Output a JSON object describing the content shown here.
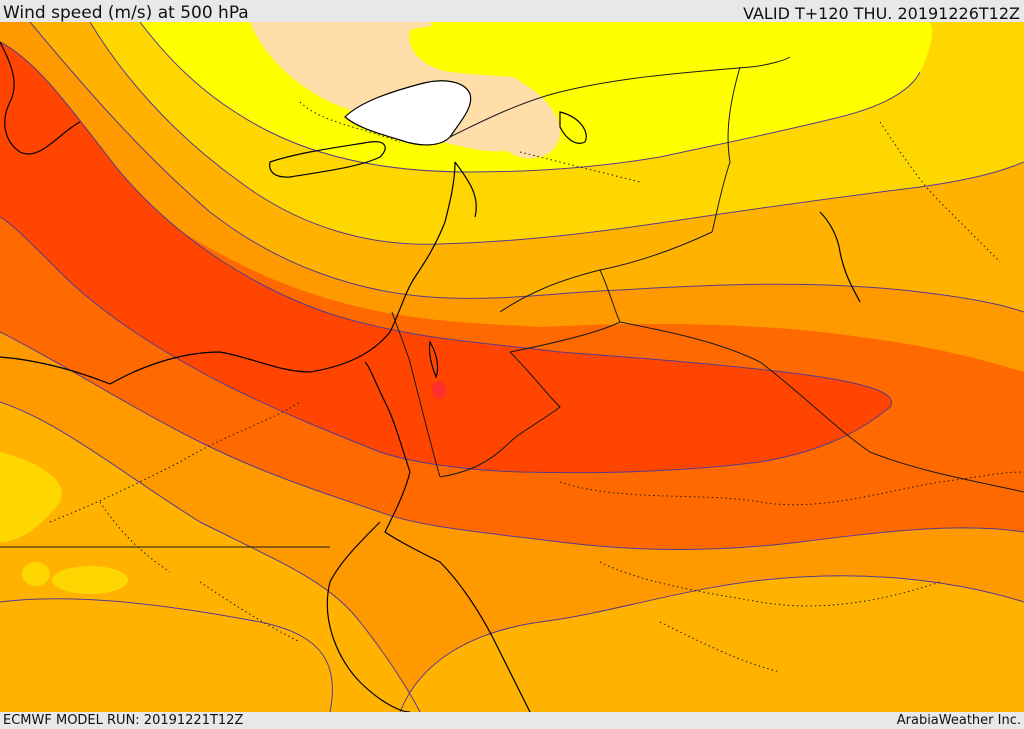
{
  "header": {
    "title": "Wind speed (m/s) at 500 hPa",
    "valid": "VALID T+120 THU. 20191226T12Z"
  },
  "footer": {
    "model_run": "ECMWF MODEL RUN: 20191221T12Z",
    "credit": "ArabiaWeather Inc."
  },
  "map": {
    "variable": "wind speed at 500 hPa",
    "colors": {
      "calm": "#ffffff",
      "very_light": "#ffdeaa",
      "light": "#ffff00",
      "light_moderate": "#ffd700",
      "moderate": "#ffb300",
      "moderate_strong": "#ff9900",
      "strong": "#ff6a00",
      "very_strong": "#ff4500",
      "jet_core": "#ff2f2f",
      "contour": "#5a3a8a",
      "coastline": "#000000",
      "border": "#1a1a1a"
    }
  }
}
